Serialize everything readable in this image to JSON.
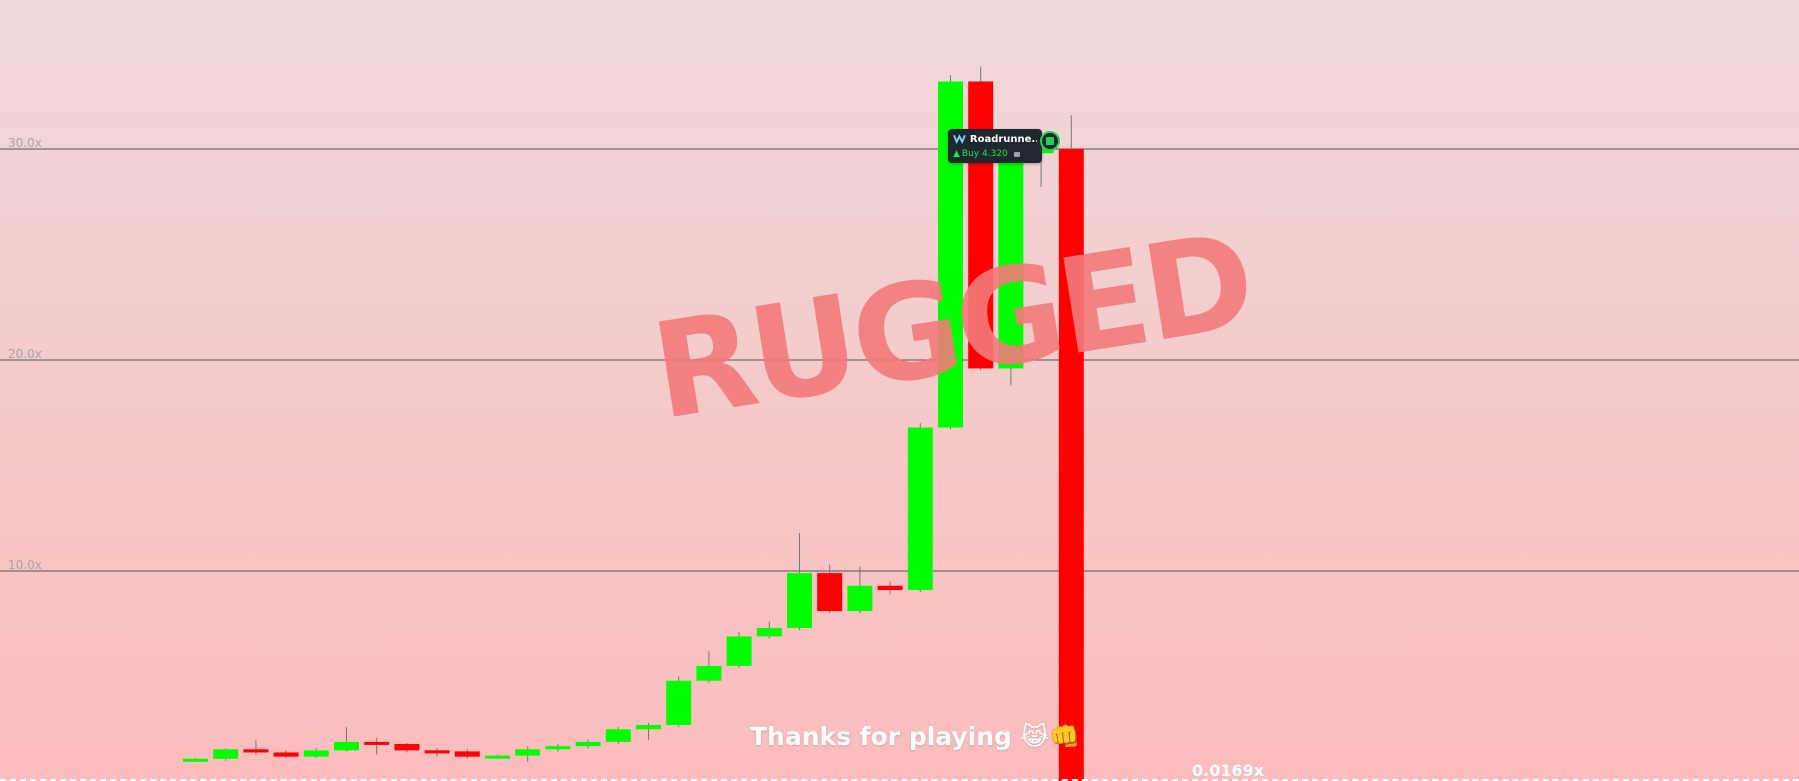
{
  "game": {
    "status_label": "RUGGED",
    "message": "Thanks for playing",
    "emoji": "😹👊",
    "current_multiplier": "0.0169x"
  },
  "trade_tag": {
    "username": "Roadrunne...",
    "action": "Buy 4.320",
    "icon": "sol-icon"
  },
  "colors": {
    "up": "#00ff00",
    "down": "#ff0000",
    "gridline": "#555555",
    "axis_text": "#a9a3a4",
    "rugged": "#f47a7b"
  },
  "chart_data": {
    "type": "candlestick",
    "y_axis_ticks": [
      "10.0x",
      "20.0x",
      "30.0x"
    ],
    "tick_values": [
      10,
      20,
      30
    ],
    "ylim": [
      0,
      37
    ],
    "candles": [
      {
        "o": 1.0,
        "h": 1.15,
        "l": 0.95,
        "c": 1.1
      },
      {
        "o": 1.1,
        "h": 1.6,
        "l": 1.0,
        "c": 1.55
      },
      {
        "o": 1.55,
        "h": 2.0,
        "l": 1.3,
        "c": 1.4
      },
      {
        "o": 1.4,
        "h": 1.5,
        "l": 1.1,
        "c": 1.2
      },
      {
        "o": 1.2,
        "h": 1.6,
        "l": 1.15,
        "c": 1.5
      },
      {
        "o": 1.5,
        "h": 2.6,
        "l": 1.45,
        "c": 1.9
      },
      {
        "o": 1.9,
        "h": 2.1,
        "l": 1.3,
        "c": 1.8
      },
      {
        "o": 1.8,
        "h": 1.85,
        "l": 1.4,
        "c": 1.5
      },
      {
        "o": 1.5,
        "h": 1.6,
        "l": 1.2,
        "c": 1.45
      },
      {
        "o": 1.45,
        "h": 1.55,
        "l": 1.1,
        "c": 1.2
      },
      {
        "o": 1.2,
        "h": 1.3,
        "l": 1.1,
        "c": 1.25
      },
      {
        "o": 1.25,
        "h": 1.7,
        "l": 0.95,
        "c": 1.55
      },
      {
        "o": 1.55,
        "h": 1.8,
        "l": 1.45,
        "c": 1.7
      },
      {
        "o": 1.7,
        "h": 2.0,
        "l": 1.6,
        "c": 1.9
      },
      {
        "o": 1.9,
        "h": 2.6,
        "l": 1.8,
        "c": 2.5
      },
      {
        "o": 2.5,
        "h": 2.8,
        "l": 2.0,
        "c": 2.7
      },
      {
        "o": 2.7,
        "h": 5.0,
        "l": 2.6,
        "c": 4.8
      },
      {
        "o": 4.8,
        "h": 6.2,
        "l": 4.7,
        "c": 5.5
      },
      {
        "o": 5.5,
        "h": 7.1,
        "l": 5.4,
        "c": 6.9
      },
      {
        "o": 6.9,
        "h": 7.6,
        "l": 6.8,
        "c": 7.3
      },
      {
        "o": 7.3,
        "h": 11.8,
        "l": 7.2,
        "c": 9.9
      },
      {
        "o": 9.9,
        "h": 10.3,
        "l": 8.0,
        "c": 8.1
      },
      {
        "o": 8.1,
        "h": 10.2,
        "l": 8.0,
        "c": 9.3
      },
      {
        "o": 9.3,
        "h": 9.5,
        "l": 8.9,
        "c": 9.1
      },
      {
        "o": 9.1,
        "h": 17.0,
        "l": 9.0,
        "c": 16.8
      },
      {
        "o": 16.8,
        "h": 33.5,
        "l": 16.7,
        "c": 33.2
      },
      {
        "o": 33.2,
        "h": 33.9,
        "l": 19.5,
        "c": 19.6
      },
      {
        "o": 19.6,
        "h": 30.5,
        "l": 18.8,
        "c": 29.8
      },
      {
        "o": 29.8,
        "h": 30.3,
        "l": 28.2,
        "c": 30.0
      },
      {
        "o": 30.0,
        "h": 31.6,
        "l": 0.0169,
        "c": 0.0169
      }
    ]
  }
}
